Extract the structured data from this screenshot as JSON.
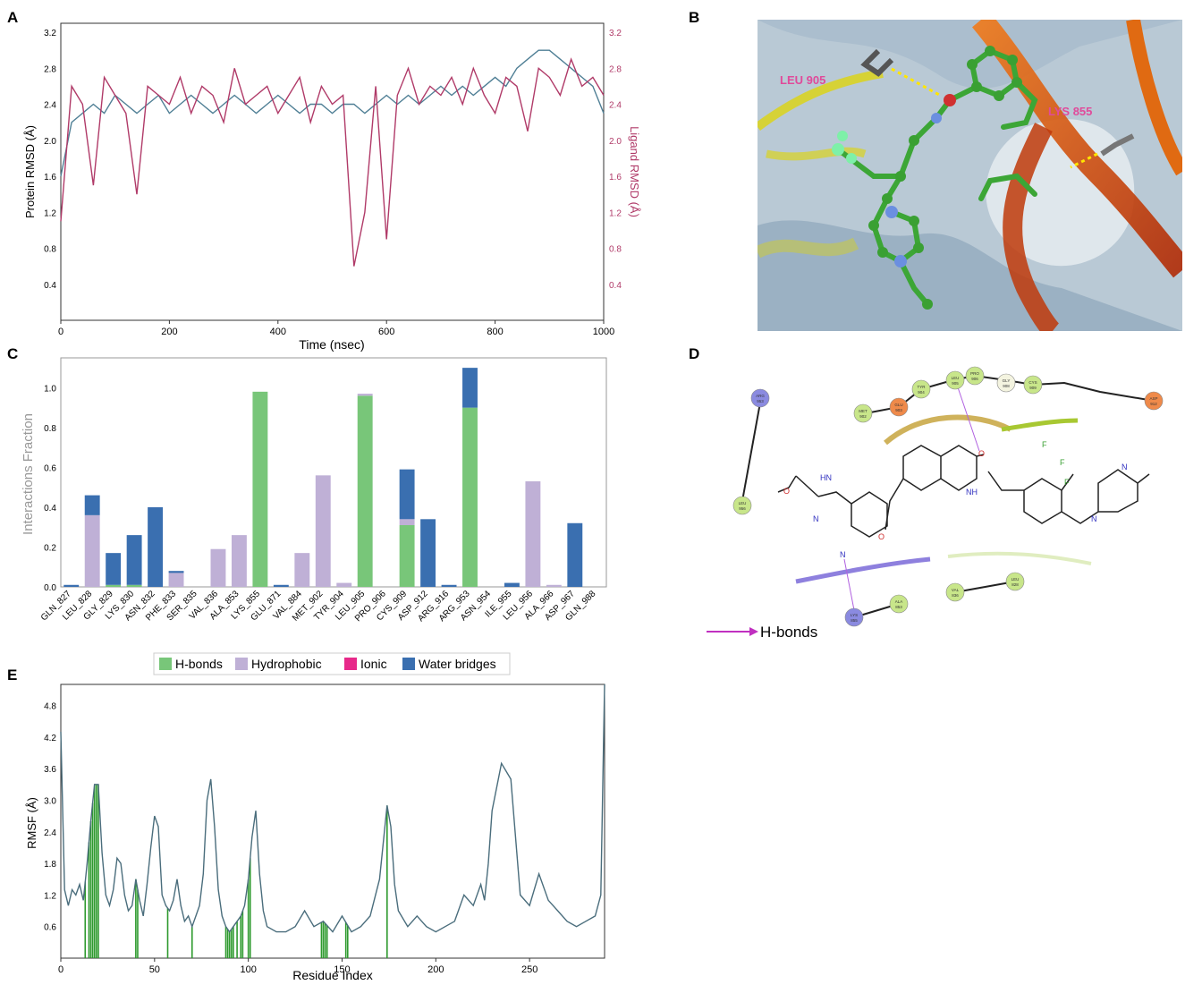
{
  "panels": {
    "a": "A",
    "b": "B",
    "c": "C",
    "d": "D",
    "e": "E"
  },
  "chart_data": [
    {
      "panel": "A",
      "type": "line",
      "xlabel": "Time (nsec)",
      "ylabel": "Protein RMSD (Å)",
      "y2label": "Ligand RMSD (Å)",
      "xlim": [
        0,
        1000
      ],
      "ylim": [
        0,
        3.3
      ],
      "y2lim": [
        0,
        3.3
      ],
      "xticks": [
        0,
        200,
        400,
        600,
        800,
        1000
      ],
      "yticks": [
        0.4,
        0.8,
        1.2,
        1.6,
        2.0,
        2.4,
        2.8,
        3.2
      ],
      "series": [
        {
          "color": "#4f7f95",
          "x": [
            0,
            20,
            40,
            60,
            80,
            100,
            120,
            140,
            160,
            180,
            200,
            220,
            240,
            260,
            280,
            300,
            320,
            340,
            360,
            380,
            400,
            420,
            440,
            460,
            480,
            500,
            520,
            540,
            560,
            580,
            600,
            620,
            640,
            660,
            680,
            700,
            720,
            740,
            760,
            780,
            800,
            820,
            840,
            860,
            880,
            900,
            920,
            940,
            960,
            980,
            1000
          ],
          "values": [
            1.6,
            2.2,
            2.3,
            2.4,
            2.3,
            2.5,
            2.4,
            2.3,
            2.4,
            2.5,
            2.3,
            2.4,
            2.5,
            2.4,
            2.3,
            2.4,
            2.5,
            2.4,
            2.3,
            2.4,
            2.5,
            2.4,
            2.3,
            2.4,
            2.4,
            2.3,
            2.4,
            2.4,
            2.3,
            2.4,
            2.5,
            2.4,
            2.5,
            2.4,
            2.5,
            2.6,
            2.5,
            2.6,
            2.5,
            2.6,
            2.7,
            2.6,
            2.8,
            2.9,
            3.0,
            3.0,
            2.9,
            2.8,
            2.7,
            2.6,
            2.3
          ]
        },
        {
          "color": "#b03a68",
          "x": [
            0,
            20,
            40,
            60,
            80,
            100,
            120,
            140,
            160,
            180,
            200,
            220,
            240,
            260,
            280,
            300,
            320,
            340,
            360,
            380,
            400,
            420,
            440,
            460,
            480,
            500,
            520,
            540,
            560,
            580,
            600,
            620,
            640,
            660,
            680,
            700,
            720,
            740,
            760,
            780,
            800,
            820,
            840,
            860,
            880,
            900,
            920,
            940,
            960,
            980,
            1000
          ],
          "values": [
            1.1,
            2.6,
            2.4,
            1.5,
            2.7,
            2.5,
            2.3,
            1.4,
            2.6,
            2.5,
            2.4,
            2.7,
            2.3,
            2.6,
            2.5,
            2.2,
            2.8,
            2.4,
            2.5,
            2.6,
            2.3,
            2.5,
            2.7,
            2.2,
            2.6,
            2.4,
            2.5,
            0.6,
            1.2,
            2.6,
            0.9,
            2.5,
            2.8,
            2.4,
            2.6,
            2.5,
            2.7,
            2.4,
            2.8,
            2.5,
            2.3,
            2.7,
            2.6,
            2.1,
            2.8,
            2.7,
            2.5,
            2.9,
            2.6,
            2.7,
            2.5
          ]
        }
      ]
    },
    {
      "panel": "C",
      "type": "bar",
      "ylabel": "Interactions Fraction",
      "ylim": [
        0,
        1.15
      ],
      "yticks": [
        0.0,
        0.2,
        0.4,
        0.6,
        0.8,
        1.0
      ],
      "categories": [
        "GLN_827",
        "LEU_828",
        "GLY_829",
        "LYS_830",
        "ASN_832",
        "PHE_833",
        "SER_835",
        "VAL_836",
        "ALA_853",
        "LYS_855",
        "GLU_871",
        "VAL_884",
        "MET_902",
        "TYR_904",
        "LEU_905",
        "PRO_906",
        "CYS_909",
        "ASP_912",
        "ARG_916",
        "ARG_953",
        "ASN_954",
        "ILE_955",
        "LEU_956",
        "ALA_966",
        "ASP_967",
        "GLN_988"
      ],
      "legend": [
        "H-bonds",
        "Hydrophobic",
        "Ionic",
        "Water bridges"
      ],
      "series": [
        {
          "name": "H-bonds",
          "color": "#78c679",
          "values": [
            0,
            0,
            0.01,
            0.01,
            0,
            0,
            0,
            0,
            0,
            0.98,
            0,
            0,
            0,
            0,
            0.96,
            0,
            0.31,
            0,
            0,
            0.9,
            0,
            0,
            0,
            0,
            0,
            0
          ]
        },
        {
          "name": "Hydrophobic",
          "color": "#bfb0d6",
          "values": [
            0,
            0.36,
            0,
            0,
            0,
            0.07,
            0,
            0.19,
            0.26,
            0,
            0,
            0.17,
            0.56,
            0.02,
            0.01,
            0,
            0.03,
            0,
            0,
            0,
            0,
            0,
            0.53,
            0.01,
            0,
            0
          ]
        },
        {
          "name": "Ionic",
          "color": "#e7298a",
          "values": [
            0,
            0,
            0,
            0,
            0,
            0,
            0,
            0,
            0,
            0,
            0,
            0,
            0,
            0,
            0,
            0,
            0,
            0,
            0,
            0,
            0,
            0,
            0,
            0,
            0,
            0
          ]
        },
        {
          "name": "Water bridges",
          "color": "#3a6fb0",
          "values": [
            0.01,
            0.1,
            0.16,
            0.25,
            0.4,
            0.01,
            0,
            0,
            0,
            0,
            0.01,
            0,
            0,
            0,
            0,
            0,
            0.25,
            0.34,
            0.01,
            0.2,
            0,
            0.02,
            0,
            0,
            0.32,
            0
          ]
        }
      ]
    },
    {
      "panel": "E",
      "type": "line",
      "xlabel": "Residue Index",
      "ylabel": "RMSF (Å)",
      "xlim": [
        0,
        290
      ],
      "ylim": [
        0,
        5.2
      ],
      "xticks": [
        0,
        50,
        100,
        150,
        200,
        250
      ],
      "yticks": [
        0.6,
        1.2,
        1.8,
        2.4,
        3.0,
        3.6,
        4.2,
        4.8
      ],
      "series": [
        {
          "color": "#4a6d7c",
          "x": [
            0,
            2,
            4,
            6,
            8,
            10,
            12,
            14,
            16,
            18,
            20,
            22,
            24,
            26,
            28,
            30,
            32,
            34,
            36,
            38,
            40,
            42,
            44,
            46,
            48,
            50,
            52,
            54,
            56,
            58,
            60,
            62,
            64,
            66,
            68,
            70,
            72,
            74,
            76,
            78,
            80,
            82,
            84,
            86,
            88,
            90,
            92,
            94,
            96,
            98,
            100,
            102,
            104,
            106,
            108,
            110,
            115,
            120,
            125,
            130,
            135,
            140,
            145,
            150,
            155,
            160,
            165,
            170,
            172,
            174,
            176,
            178,
            180,
            185,
            190,
            195,
            200,
            205,
            210,
            215,
            220,
            224,
            226,
            228,
            230,
            235,
            240,
            245,
            250,
            255,
            260,
            265,
            270,
            275,
            280,
            285,
            288,
            290
          ],
          "values": [
            4.3,
            1.3,
            1.0,
            1.3,
            1.2,
            1.4,
            1.1,
            1.8,
            2.6,
            3.3,
            3.3,
            2.0,
            1.2,
            1.0,
            1.3,
            1.9,
            1.8,
            1.2,
            0.9,
            1.0,
            1.5,
            1.1,
            0.8,
            1.4,
            2.1,
            2.7,
            2.5,
            1.2,
            1.0,
            0.9,
            1.1,
            1.5,
            1.0,
            0.7,
            0.8,
            0.6,
            0.8,
            1.0,
            1.6,
            3.0,
            3.4,
            2.5,
            1.3,
            0.8,
            0.6,
            0.5,
            0.6,
            0.7,
            0.8,
            1.0,
            1.5,
            2.3,
            2.8,
            1.6,
            0.9,
            0.6,
            0.5,
            0.5,
            0.6,
            0.9,
            0.6,
            0.7,
            0.5,
            0.8,
            0.5,
            0.6,
            0.8,
            1.5,
            2.2,
            2.9,
            2.5,
            1.4,
            0.9,
            0.6,
            0.8,
            0.6,
            0.5,
            0.6,
            0.7,
            1.2,
            1.0,
            1.4,
            1.1,
            1.8,
            2.8,
            3.7,
            3.4,
            1.2,
            1.0,
            1.6,
            1.1,
            0.9,
            0.7,
            0.6,
            0.7,
            0.8,
            1.2,
            5.2
          ]
        }
      ],
      "contact_residues": [
        13,
        15,
        16,
        17,
        18,
        19,
        20,
        40,
        41,
        57,
        70,
        88,
        89,
        90,
        91,
        92,
        94,
        96,
        97,
        100,
        101,
        139,
        140,
        141,
        142,
        152,
        153,
        174
      ]
    }
  ],
  "panelB": {
    "labels": [
      "LEU 905",
      "LYS 855"
    ]
  },
  "panelD": {
    "residues": [
      {
        "name": "ARG 953"
      },
      {
        "name": "LEU 956"
      },
      {
        "name": "MET 902"
      },
      {
        "name": "GLU 903"
      },
      {
        "name": "TYR 904"
      },
      {
        "name": "LEU 905"
      },
      {
        "name": "PRO 906"
      },
      {
        "name": "GLY 908"
      },
      {
        "name": "CYS 909"
      },
      {
        "name": "ASP 912"
      },
      {
        "name": "LYS 855"
      },
      {
        "name": "ALA 853"
      },
      {
        "name": "VAL 836"
      },
      {
        "name": "LEU 828"
      }
    ],
    "atoms": {
      "n": "N",
      "o": "O",
      "f": "F",
      "nh": "NH",
      "hn": "HN"
    },
    "legend": "H-bonds"
  }
}
